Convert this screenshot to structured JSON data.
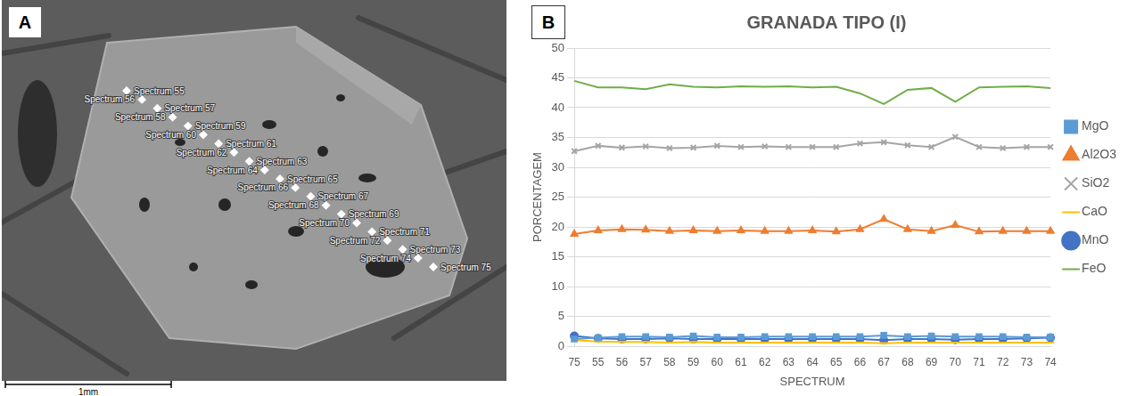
{
  "panel_a": {
    "label": "A",
    "spectra": [
      "Spectrum 55",
      "Spectrum 56",
      "Spectrum 57",
      "Spectrum 58",
      "Spectrum 59",
      "Spectrum 60",
      "Spectrum 61",
      "Spectrum 62",
      "Spectrum 63",
      "Spectrum 64",
      "Spectrum 65",
      "Spectrum 66",
      "Spectrum 67",
      "Spectrum 68",
      "Spectrum 69",
      "Spectrum 70",
      "Spectrum 71",
      "Spectrum 72",
      "Spectrum 73",
      "Spectrum 74",
      "Spectrum 75"
    ],
    "scale_bar": "1mm"
  },
  "chart_data": {
    "type": "line",
    "label": "B",
    "title": "GRANADA TIPO (I)",
    "x_label": "SPECTRUM",
    "y_label": "PORCENTAGEM",
    "categories": [
      "75",
      "55",
      "56",
      "57",
      "58",
      "59",
      "60",
      "61",
      "62",
      "63",
      "64",
      "65",
      "66",
      "67",
      "68",
      "69",
      "70",
      "71",
      "72",
      "73",
      "74"
    ],
    "series": [
      {
        "name": "MgO",
        "color": "#5b9bd5",
        "marker": "square",
        "values": [
          1.2,
          1.4,
          1.6,
          1.6,
          1.5,
          1.7,
          1.5,
          1.5,
          1.6,
          1.6,
          1.6,
          1.6,
          1.6,
          1.8,
          1.6,
          1.7,
          1.6,
          1.6,
          1.6,
          1.5,
          1.5
        ]
      },
      {
        "name": "Al2O3",
        "color": "#ed7d31",
        "marker": "triangle",
        "values": [
          18.8,
          19.4,
          19.6,
          19.5,
          19.3,
          19.4,
          19.3,
          19.4,
          19.3,
          19.3,
          19.4,
          19.2,
          19.6,
          21.3,
          19.6,
          19.3,
          20.3,
          19.2,
          19.3,
          19.3,
          19.3
        ]
      },
      {
        "name": "SiO2",
        "color": "#a5a5a5",
        "marker": "cross",
        "values": [
          32.7,
          33.6,
          33.3,
          33.5,
          33.2,
          33.3,
          33.6,
          33.4,
          33.5,
          33.4,
          33.4,
          33.4,
          34.0,
          34.2,
          33.7,
          33.4,
          35.1,
          33.4,
          33.2,
          33.4,
          33.4
        ]
      },
      {
        "name": "CaO",
        "color": "#ffc000",
        "marker": "line",
        "values": [
          1.0,
          0.8,
          0.7,
          0.7,
          0.6,
          0.7,
          0.6,
          0.6,
          0.6,
          0.6,
          0.6,
          0.6,
          0.6,
          0.5,
          0.6,
          0.6,
          0.6,
          0.6,
          0.6,
          0.6,
          0.6
        ]
      },
      {
        "name": "MnO",
        "color": "#4472c4",
        "marker": "circle",
        "values": [
          1.7,
          1.3,
          1.2,
          1.2,
          1.3,
          1.2,
          1.2,
          1.2,
          1.2,
          1.2,
          1.2,
          1.2,
          1.2,
          1.0,
          1.2,
          1.2,
          1.1,
          1.2,
          1.2,
          1.3,
          1.4
        ]
      },
      {
        "name": "FeO",
        "color": "#70ad47",
        "marker": "none",
        "values": [
          44.5,
          43.4,
          43.4,
          43.1,
          43.9,
          43.5,
          43.4,
          43.6,
          43.5,
          43.6,
          43.4,
          43.5,
          42.4,
          40.6,
          43.0,
          43.3,
          41.0,
          43.4,
          43.5,
          43.6,
          43.3
        ]
      }
    ],
    "ylim": [
      0,
      50
    ],
    "yticks": [
      0,
      5,
      10,
      15,
      20,
      25,
      30,
      35,
      40,
      45,
      50
    ],
    "grid": true,
    "legend": "right"
  }
}
